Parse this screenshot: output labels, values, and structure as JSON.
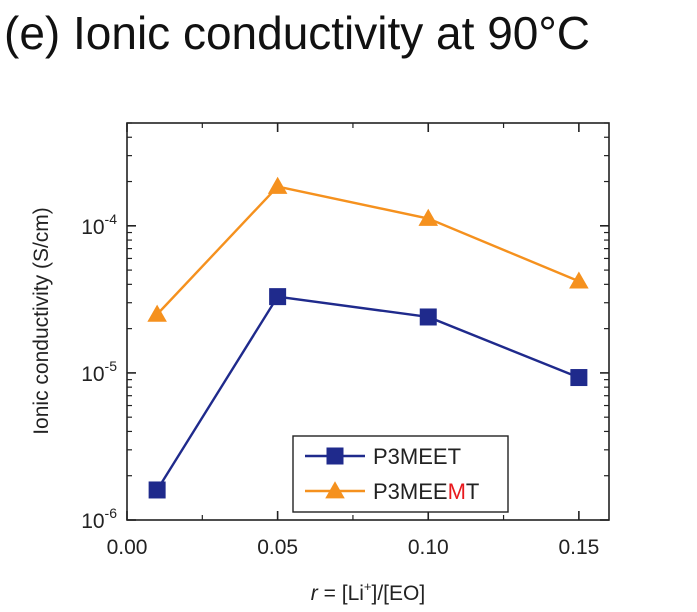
{
  "chart_data": {
    "type": "line",
    "title": "(e) Ionic conductivity at 90°C",
    "xlabel": {
      "italic": "r",
      "prefix": " = [Li",
      "sup": "+",
      "suffix": "]/[EO]"
    },
    "ylabel": "Ionic conductivity (S/cm)",
    "xlim": [
      0.0,
      0.16
    ],
    "ylim": [
      1e-06,
      0.0005
    ],
    "yscale": "log",
    "xticks": [
      {
        "value": 0.0,
        "label": "0.00"
      },
      {
        "value": 0.05,
        "label": "0.05"
      },
      {
        "value": 0.1,
        "label": "0.10"
      },
      {
        "value": 0.15,
        "label": "0.15"
      }
    ],
    "yticks": [
      {
        "value": 1e-06,
        "base": "10",
        "exp": "-6"
      },
      {
        "value": 1e-05,
        "base": "10",
        "exp": "-5"
      },
      {
        "value": 0.0001,
        "base": "10",
        "exp": "-4"
      }
    ],
    "grid": false,
    "legend_position": "bottom-right",
    "x": [
      0.01,
      0.05,
      0.1,
      0.15
    ],
    "series": [
      {
        "name": "P3MEET",
        "name_parts": [
          {
            "text": "P3MEET",
            "color": "#222222"
          }
        ],
        "marker": "square",
        "color": "#1f2a8c",
        "values": [
          1.6e-06,
          3.3e-05,
          2.4e-05,
          9.3e-06
        ]
      },
      {
        "name": "P3MEEMT",
        "name_parts": [
          {
            "text": "P3MEE",
            "color": "#222222"
          },
          {
            "text": "M",
            "color": "#e8191d"
          },
          {
            "text": "T",
            "color": "#222222"
          }
        ],
        "marker": "triangle",
        "color": "#f5911e",
        "values": [
          2.5e-05,
          0.000185,
          0.000112,
          4.2e-05
        ]
      }
    ]
  }
}
